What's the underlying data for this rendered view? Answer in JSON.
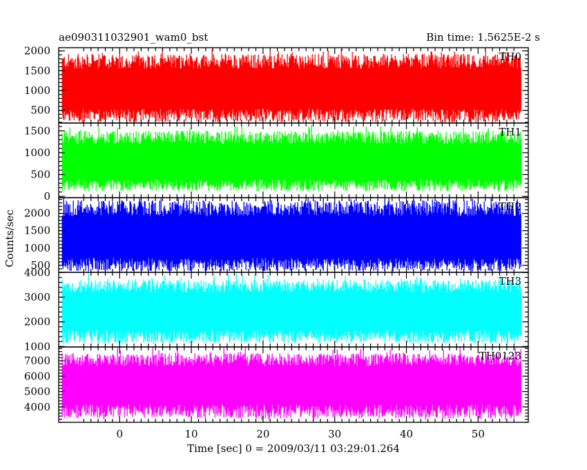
{
  "chart_data": {
    "type": "line",
    "title_left": "ae090311032901_wam0_bst",
    "title_right": "Bin time: 1.5625E-2 s",
    "xlabel": "Time [sec] 0 = 2009/03/11 03:29:01.264",
    "ylabel": "Counts/sec",
    "xlim": [
      -8.5,
      57
    ],
    "x_data_range": [
      -8.0,
      56.0
    ],
    "bin_time": 0.015625,
    "x_ticks": [
      0,
      10,
      20,
      30,
      40,
      50
    ],
    "x_tick_labels": [
      "0",
      "10",
      "20",
      "30",
      "40",
      "50"
    ],
    "panels": [
      {
        "name": "TH0",
        "color": "#ff0000",
        "ylim": [
          180,
          2080
        ],
        "y_ticks": [
          500,
          1000,
          1500,
          2000
        ],
        "y_tick_labels": [
          "500",
          "1000",
          "1500",
          "2000"
        ],
        "mean": 1020,
        "low_typical": 400,
        "high_typical": 1700,
        "min": 230,
        "max": 2080
      },
      {
        "name": "TH1",
        "color": "#00ff00",
        "ylim": [
          -30,
          1680
        ],
        "y_ticks": [
          0,
          500,
          1000,
          1500
        ],
        "y_tick_labels": [
          "0",
          "500",
          "1000",
          "1500"
        ],
        "mean": 760,
        "low_typical": 280,
        "high_typical": 1320,
        "min": 140,
        "max": 1650
      },
      {
        "name": "TH2",
        "color": "#0000ff",
        "ylim": [
          300,
          2450
        ],
        "y_ticks": [
          500,
          1000,
          1500,
          2000
        ],
        "y_tick_labels": [
          "500",
          "1000",
          "1500",
          "2000"
        ],
        "mean": 1260,
        "low_typical": 560,
        "high_typical": 2100,
        "min": 330,
        "max": 2450
      },
      {
        "name": "TH3",
        "color": "#00ffff",
        "ylim": [
          980,
          4010
        ],
        "y_ticks": [
          1000,
          2000,
          3000,
          4000
        ],
        "y_tick_labels": [
          "1000",
          "2000",
          "3000",
          "4000"
        ],
        "mean": 2450,
        "low_typical": 1450,
        "high_typical": 3400,
        "min": 1100,
        "max": 3980
      },
      {
        "name": "TH0123",
        "color": "#ff00ff",
        "ylim": [
          3000,
          7900
        ],
        "y_ticks": [
          4000,
          5000,
          6000,
          7000
        ],
        "y_tick_labels": [
          "4000",
          "5000",
          "6000",
          "7000"
        ],
        "mean": 5450,
        "low_typical": 3800,
        "high_typical": 7000,
        "min": 3150,
        "max": 7900
      }
    ]
  }
}
